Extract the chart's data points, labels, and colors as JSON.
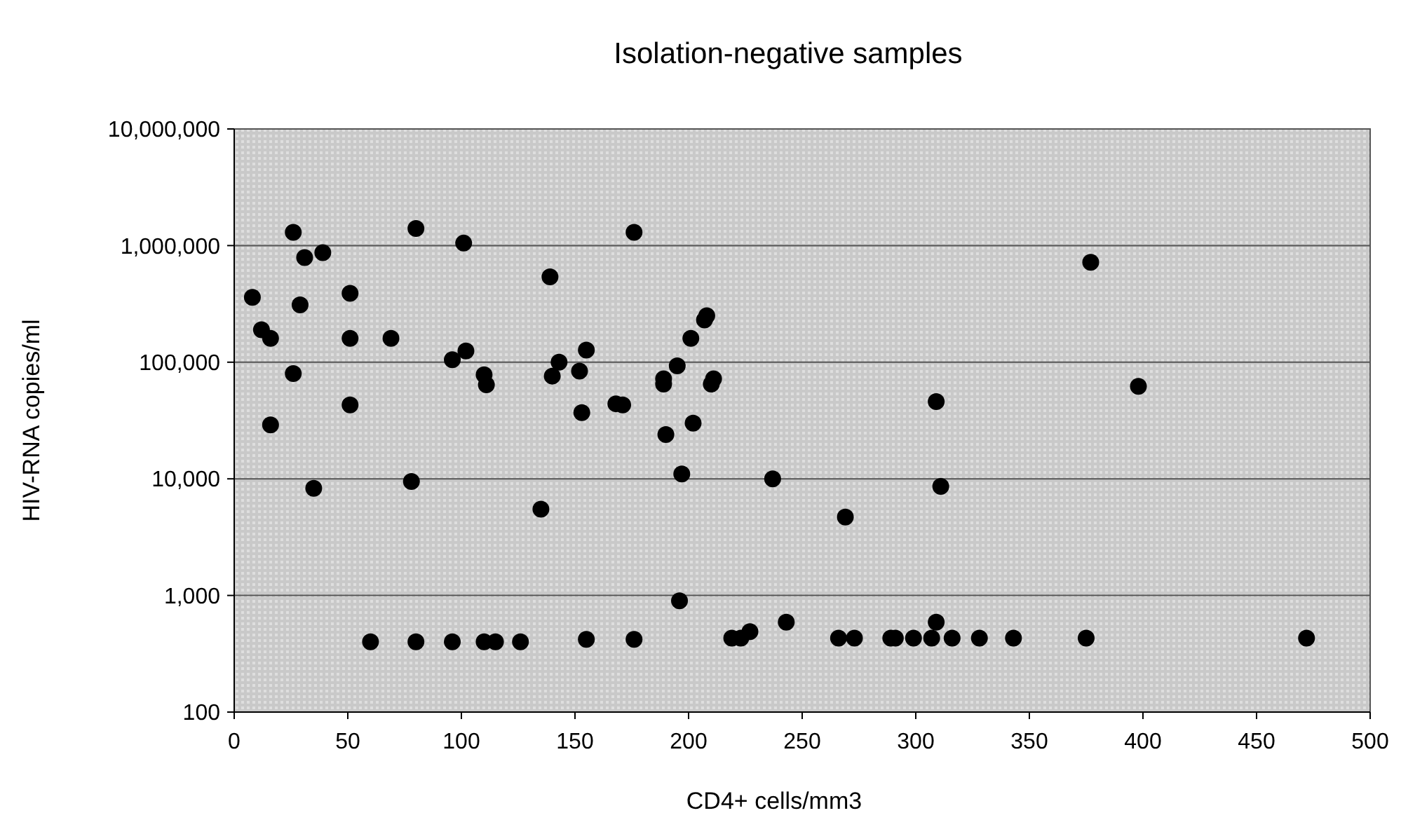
{
  "chart_data": {
    "type": "scatter",
    "title": "Isolation-negative samples",
    "xlabel": "CD4+ cells/mm3",
    "ylabel": "HIV-RNA copies/ml",
    "log": "y",
    "grid": "y",
    "marker": "circle",
    "xlim": [
      0,
      500
    ],
    "xticks": [
      0,
      50,
      100,
      150,
      200,
      250,
      300,
      350,
      400,
      450,
      500
    ],
    "ylim": [
      100,
      10000000
    ],
    "yticks": [
      {
        "value": 100,
        "label": "100"
      },
      {
        "value": 1000,
        "label": "1,000"
      },
      {
        "value": 10000,
        "label": "10,000"
      },
      {
        "value": 100000,
        "label": "100,000"
      },
      {
        "value": 1000000,
        "label": "1,000,000"
      },
      {
        "value": 10000000,
        "label": "10,000,000"
      }
    ],
    "series": [
      {
        "color": "#000000",
        "x": [
          8,
          12,
          16,
          16,
          26,
          26,
          29,
          31,
          35,
          39,
          51,
          51,
          51,
          60,
          69,
          78,
          80,
          80,
          96,
          96,
          101,
          102,
          110,
          111,
          110,
          115,
          126,
          135,
          139,
          140,
          143,
          152,
          153,
          155,
          155,
          168,
          171,
          176,
          176,
          189,
          189,
          190,
          195,
          196,
          197,
          201,
          202,
          207,
          208,
          210,
          211,
          219,
          223,
          227,
          237,
          243,
          266,
          269,
          273,
          289,
          291,
          299,
          307,
          309,
          309,
          311,
          316,
          328,
          343,
          375,
          377,
          398,
          472
        ],
        "values": [
          360000,
          190000,
          160000,
          29000,
          1300000,
          80000,
          310000,
          790000,
          8300,
          870000,
          390000,
          160000,
          43000,
          400,
          160000,
          9500,
          1400000,
          400,
          105000,
          400,
          1050000,
          125000,
          78000,
          64000,
          400,
          400,
          400,
          5500,
          540000,
          76000,
          100000,
          84000,
          37000,
          127000,
          420,
          44000,
          43000,
          1300000,
          420,
          72000,
          65000,
          24000,
          93000,
          900,
          11000,
          160000,
          30000,
          230000,
          250000,
          65000,
          72000,
          430,
          430,
          490,
          10000,
          590,
          430,
          4700,
          430,
          430,
          430,
          430,
          430,
          46000,
          590,
          8600,
          430,
          430,
          430,
          430,
          720000,
          62000,
          430
        ]
      }
    ]
  }
}
